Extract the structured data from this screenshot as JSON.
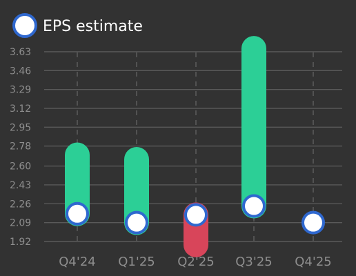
{
  "chart_data": {
    "type": "bar",
    "categories": [
      "Q4'24",
      "Q1'25",
      "Q2'25",
      "Q3'25",
      "Q4'25"
    ],
    "estimate_values": [
      2.17,
      2.09,
      2.16,
      2.24,
      2.09
    ],
    "actual_values": [
      2.7,
      2.66,
      1.89,
      3.66,
      null
    ],
    "legend": {
      "label": "EPS estimate",
      "position": "top-left"
    },
    "y_ticks": [
      "1.92",
      "2.09",
      "2.26",
      "2.43",
      "2.60",
      "2.78",
      "2.95",
      "3.12",
      "3.29",
      "3.46",
      "3.63"
    ],
    "y_tick_values": [
      1.92,
      2.09,
      2.26,
      2.43,
      2.6,
      2.78,
      2.95,
      3.12,
      3.29,
      3.46,
      3.63
    ],
    "ylim": [
      1.92,
      3.63
    ],
    "grid": true,
    "colors": {
      "background": "#323232",
      "beat": "#2ccf96",
      "miss": "#d8455a",
      "marker_fill": "#ffffff",
      "marker_stroke": "#2f68cf",
      "grid": "#5a5a5a",
      "axis_text": "#8e8e8e",
      "legend_text": "#ffffff"
    }
  }
}
